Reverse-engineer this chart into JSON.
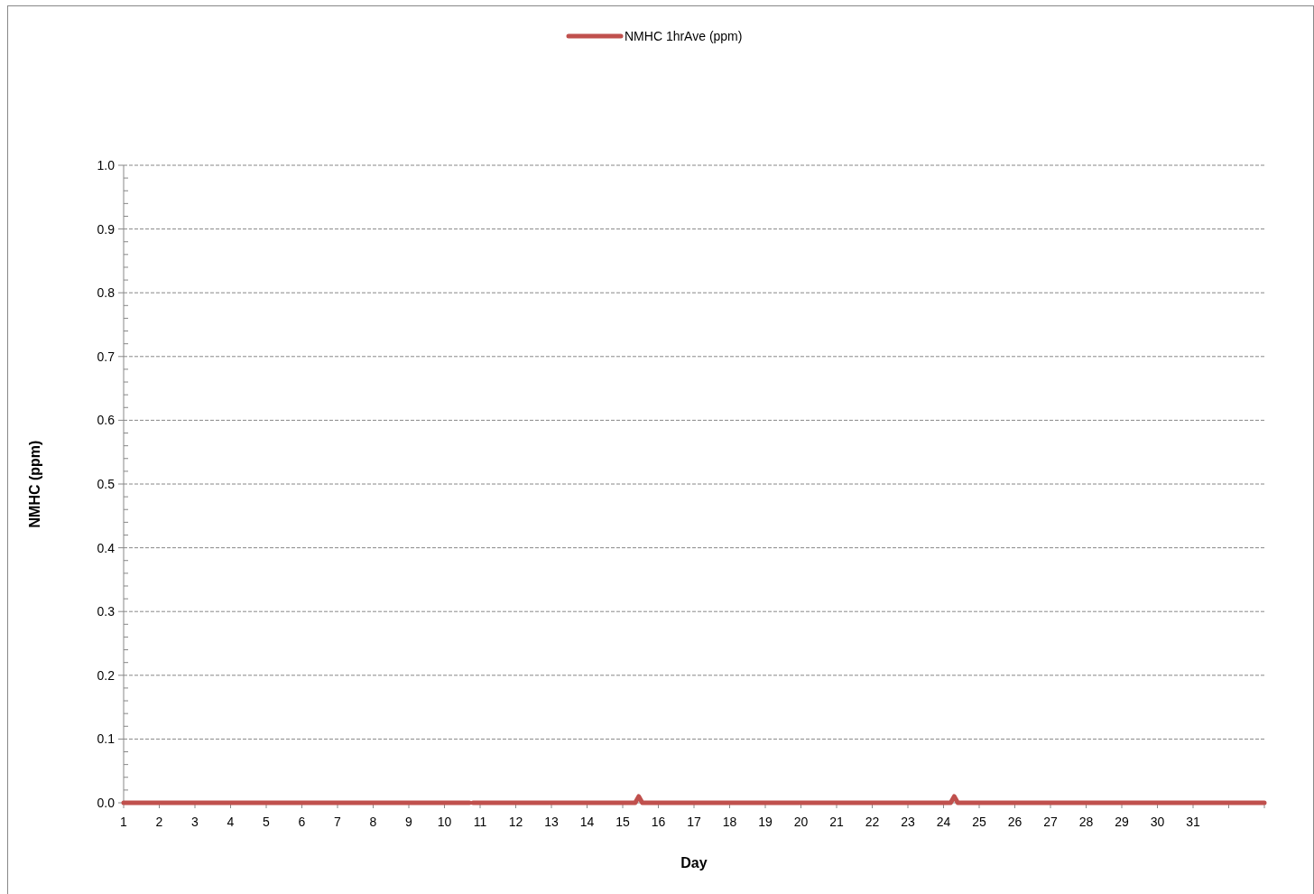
{
  "chart_data": {
    "type": "line",
    "xlabel": "Day",
    "ylabel": "NMHC (ppm)",
    "xlim": [
      1,
      33
    ],
    "xticks": [
      1,
      2,
      3,
      4,
      5,
      6,
      7,
      8,
      9,
      10,
      11,
      12,
      13,
      14,
      15,
      16,
      17,
      18,
      19,
      20,
      21,
      22,
      23,
      24,
      25,
      26,
      27,
      28,
      29,
      30,
      31,
      {
        "value": 32,
        "label": null
      },
      {
        "value": 33,
        "label": null
      }
    ],
    "ylim": [
      0,
      1
    ],
    "yticks": [
      {
        "value": 0,
        "label": "0.0"
      },
      {
        "value": 0.02,
        "label": null
      },
      {
        "value": 0.04,
        "label": null
      },
      {
        "value": 0.06,
        "label": null
      },
      {
        "value": 0.08,
        "label": null
      },
      {
        "value": 0.1,
        "label": "0.1"
      },
      {
        "value": 0.12,
        "label": null
      },
      {
        "value": 0.14,
        "label": null
      },
      {
        "value": 0.16,
        "label": null
      },
      {
        "value": 0.18,
        "label": null
      },
      {
        "value": 0.2,
        "label": "0.2"
      },
      {
        "value": 0.22,
        "label": null
      },
      {
        "value": 0.24,
        "label": null
      },
      {
        "value": 0.26,
        "label": null
      },
      {
        "value": 0.28,
        "label": null
      },
      {
        "value": 0.3,
        "label": "0.3"
      },
      {
        "value": 0.32,
        "label": null
      },
      {
        "value": 0.34,
        "label": null
      },
      {
        "value": 0.36,
        "label": null
      },
      {
        "value": 0.38,
        "label": null
      },
      {
        "value": 0.4,
        "label": "0.4"
      },
      {
        "value": 0.42,
        "label": null
      },
      {
        "value": 0.44,
        "label": null
      },
      {
        "value": 0.46,
        "label": null
      },
      {
        "value": 0.48,
        "label": null
      },
      {
        "value": 0.5,
        "label": "0.5"
      },
      {
        "value": 0.52,
        "label": null
      },
      {
        "value": 0.54,
        "label": null
      },
      {
        "value": 0.56,
        "label": null
      },
      {
        "value": 0.58,
        "label": null
      },
      {
        "value": 0.6,
        "label": "0.6"
      },
      {
        "value": 0.62,
        "label": null
      },
      {
        "value": 0.64,
        "label": null
      },
      {
        "value": 0.66,
        "label": null
      },
      {
        "value": 0.68,
        "label": null
      },
      {
        "value": 0.7,
        "label": "0.7"
      },
      {
        "value": 0.72,
        "label": null
      },
      {
        "value": 0.74,
        "label": null
      },
      {
        "value": 0.76,
        "label": null
      },
      {
        "value": 0.78,
        "label": null
      },
      {
        "value": 0.8,
        "label": "0.8"
      },
      {
        "value": 0.82,
        "label": null
      },
      {
        "value": 0.84,
        "label": null
      },
      {
        "value": 0.86,
        "label": null
      },
      {
        "value": 0.88,
        "label": null
      },
      {
        "value": 0.9,
        "label": "0.9"
      },
      {
        "value": 0.92,
        "label": null
      },
      {
        "value": 0.94,
        "label": null
      },
      {
        "value": 0.96,
        "label": null
      },
      {
        "value": 0.98,
        "label": null
      },
      {
        "value": 1,
        "label": "1.0"
      }
    ],
    "grid": "y",
    "legend": "top",
    "marker": "none",
    "line_style": "solid",
    "series": [
      {
        "name": "NMHC 1hrAve (ppm)",
        "color": "#c0504d",
        "x": [
          1,
          10.7,
          10.75,
          10.8,
          15.35,
          15.45,
          15.55,
          24.2,
          24.3,
          24.4,
          33
        ],
        "values": [
          0,
          0,
          null,
          0,
          0,
          0.01,
          0,
          0,
          0.01,
          0,
          0
        ]
      }
    ]
  }
}
